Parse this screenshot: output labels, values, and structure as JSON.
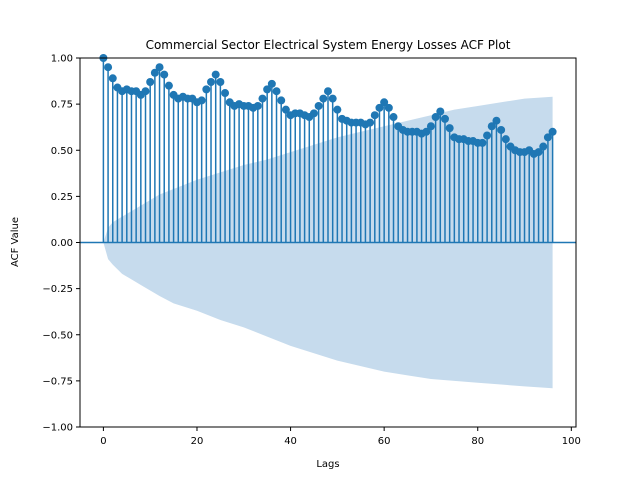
{
  "chart_data": {
    "type": "scatter",
    "subtype": "acf-stem",
    "title": "Commercial Sector Electrical System Energy Losses ACF Plot",
    "xlabel": "Lags",
    "ylabel": "ACF Value",
    "xlim": [
      -5,
      101
    ],
    "ylim": [
      -1.0,
      1.0
    ],
    "xticks": [
      0,
      20,
      40,
      60,
      80,
      100
    ],
    "xtick_labels": [
      "0",
      "20",
      "40",
      "60",
      "80",
      "100"
    ],
    "yticks": [
      -1.0,
      -0.75,
      -0.5,
      -0.25,
      0.0,
      0.25,
      0.5,
      0.75,
      1.0
    ],
    "ytick_labels": [
      "−1.00",
      "−0.75",
      "−0.50",
      "−0.25",
      "0.00",
      "0.25",
      "0.50",
      "0.75",
      "1.00"
    ],
    "grid": false,
    "colors": {
      "series": "#1f77b4",
      "confidence_band": "#c6dbed",
      "zero_line": "#1f77b4"
    },
    "acf": {
      "lags": [
        0,
        1,
        2,
        3,
        4,
        5,
        6,
        7,
        8,
        9,
        10,
        11,
        12,
        13,
        14,
        15,
        16,
        17,
        18,
        19,
        20,
        21,
        22,
        23,
        24,
        25,
        26,
        27,
        28,
        29,
        30,
        31,
        32,
        33,
        34,
        35,
        36,
        37,
        38,
        39,
        40,
        41,
        42,
        43,
        44,
        45,
        46,
        47,
        48,
        49,
        50,
        51,
        52,
        53,
        54,
        55,
        56,
        57,
        58,
        59,
        60,
        61,
        62,
        63,
        64,
        65,
        66,
        67,
        68,
        69,
        70,
        71,
        72,
        73,
        74,
        75,
        76,
        77,
        78,
        79,
        80,
        81,
        82,
        83,
        84,
        85,
        86,
        87,
        88,
        89,
        90,
        91,
        92,
        93,
        94,
        95,
        96
      ],
      "values": [
        1.0,
        0.95,
        0.89,
        0.84,
        0.82,
        0.83,
        0.82,
        0.82,
        0.8,
        0.82,
        0.87,
        0.92,
        0.95,
        0.91,
        0.85,
        0.8,
        0.78,
        0.79,
        0.78,
        0.78,
        0.76,
        0.77,
        0.83,
        0.87,
        0.91,
        0.87,
        0.81,
        0.76,
        0.74,
        0.75,
        0.74,
        0.74,
        0.73,
        0.74,
        0.78,
        0.83,
        0.86,
        0.82,
        0.77,
        0.72,
        0.69,
        0.7,
        0.7,
        0.69,
        0.68,
        0.7,
        0.74,
        0.78,
        0.82,
        0.78,
        0.72,
        0.67,
        0.66,
        0.65,
        0.65,
        0.65,
        0.64,
        0.65,
        0.69,
        0.73,
        0.76,
        0.73,
        0.68,
        0.63,
        0.61,
        0.6,
        0.6,
        0.6,
        0.59,
        0.6,
        0.63,
        0.68,
        0.71,
        0.67,
        0.62,
        0.57,
        0.56,
        0.56,
        0.55,
        0.55,
        0.54,
        0.54,
        0.58,
        0.63,
        0.66,
        0.61,
        0.56,
        0.52,
        0.5,
        0.49,
        0.49,
        0.5,
        0.48,
        0.49,
        0.52,
        0.57,
        0.6
      ]
    },
    "confidence_band_upper": {
      "lags": [
        0,
        1,
        2,
        4,
        6,
        8,
        10,
        12,
        15,
        20,
        25,
        30,
        35,
        40,
        45,
        50,
        55,
        60,
        65,
        70,
        75,
        80,
        85,
        90,
        96
      ],
      "values": [
        0.0,
        0.08,
        0.11,
        0.14,
        0.17,
        0.2,
        0.23,
        0.26,
        0.29,
        0.34,
        0.38,
        0.42,
        0.45,
        0.49,
        0.53,
        0.57,
        0.6,
        0.63,
        0.66,
        0.69,
        0.72,
        0.74,
        0.76,
        0.78,
        0.79
      ]
    },
    "confidence_band_lower": {
      "lags": [
        0,
        1,
        2,
        4,
        6,
        8,
        10,
        12,
        15,
        20,
        25,
        30,
        35,
        40,
        45,
        50,
        55,
        60,
        65,
        70,
        75,
        80,
        85,
        90,
        96
      ],
      "values": [
        0.0,
        -0.09,
        -0.12,
        -0.17,
        -0.2,
        -0.23,
        -0.26,
        -0.29,
        -0.33,
        -0.37,
        -0.42,
        -0.46,
        -0.51,
        -0.56,
        -0.6,
        -0.64,
        -0.67,
        -0.7,
        -0.72,
        -0.74,
        -0.75,
        -0.76,
        -0.77,
        -0.78,
        -0.79
      ]
    }
  }
}
